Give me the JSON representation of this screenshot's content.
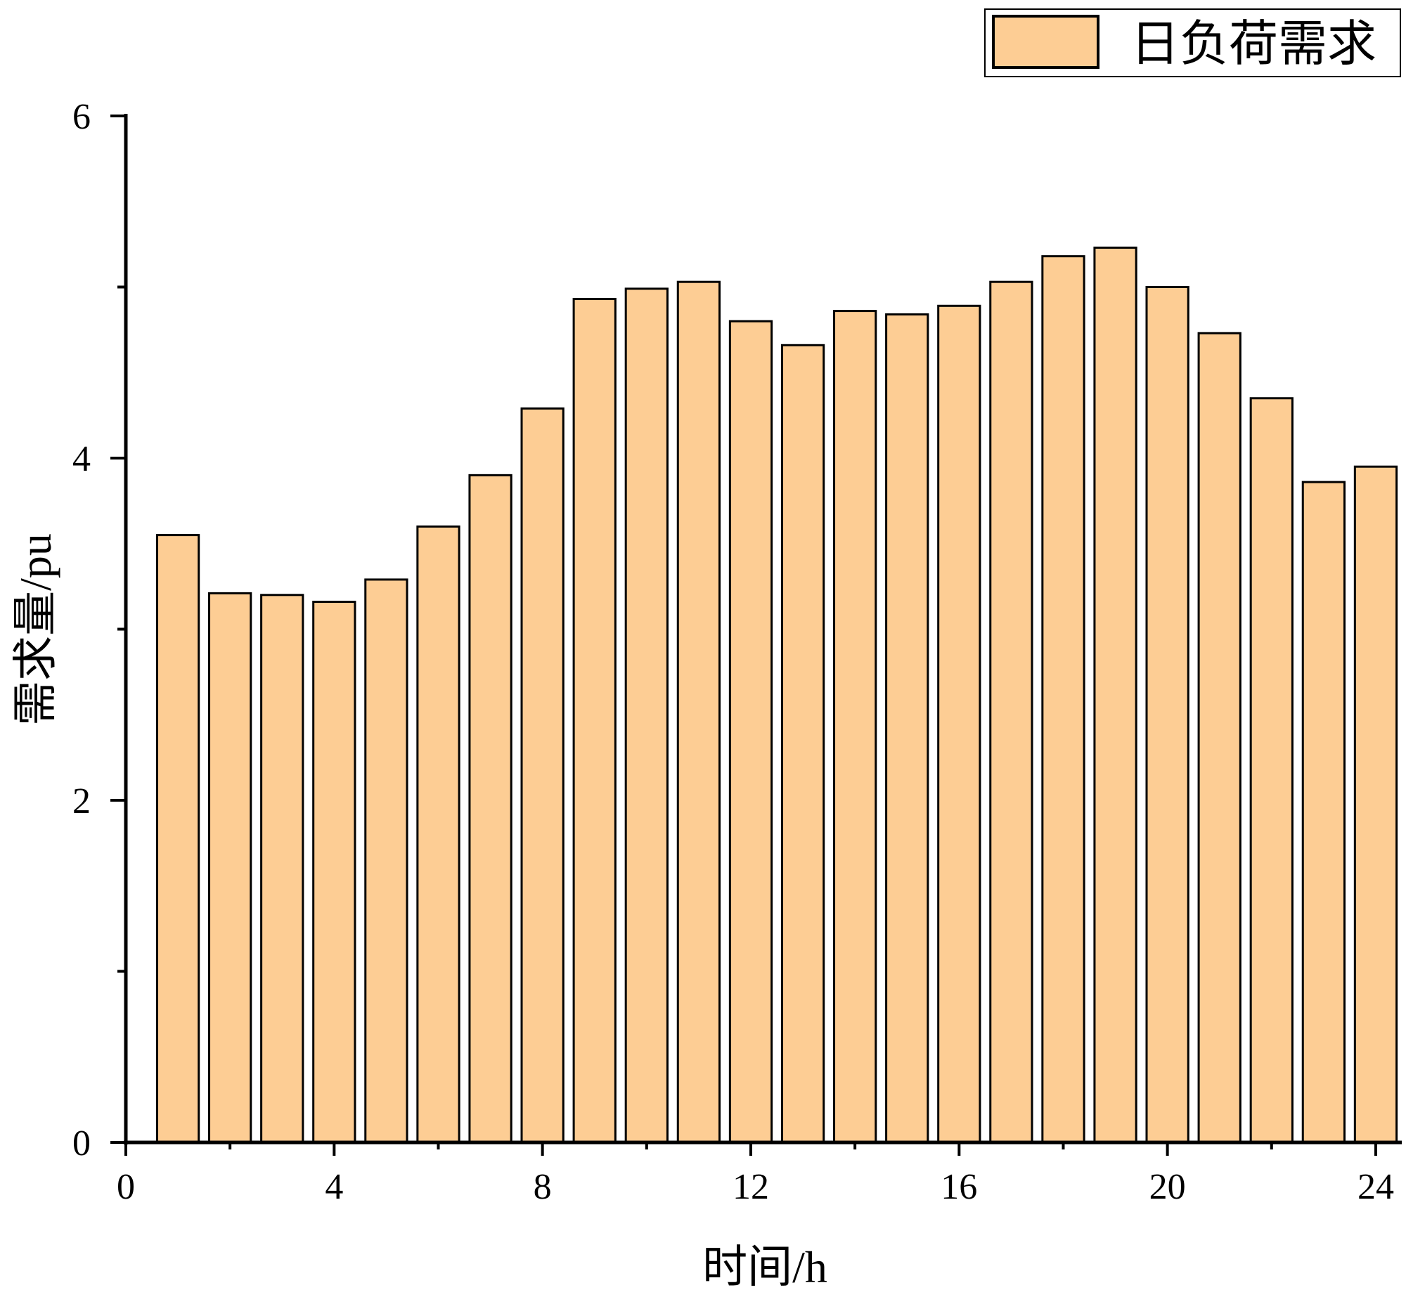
{
  "chart_data": {
    "type": "bar",
    "x_label": "时间/h",
    "y_label": "需求量/pu",
    "x": [
      1,
      2,
      3,
      4,
      5,
      6,
      7,
      8,
      9,
      10,
      11,
      12,
      13,
      14,
      15,
      16,
      17,
      18,
      19,
      20,
      21,
      22,
      23,
      24
    ],
    "series": [
      {
        "name": "日负荷需求",
        "color": "#fdcd94",
        "values": [
          3.55,
          3.21,
          3.2,
          3.16,
          3.29,
          3.6,
          3.9,
          4.29,
          4.93,
          4.99,
          5.03,
          4.8,
          4.66,
          4.86,
          4.84,
          4.89,
          5.03,
          5.18,
          5.23,
          5.0,
          4.73,
          4.35,
          3.86,
          3.95
        ]
      }
    ],
    "xlim": [
      0,
      24.5
    ],
    "xticks": [
      0,
      4,
      8,
      12,
      16,
      20,
      24
    ],
    "x_minor_ticks": [
      2,
      6,
      10,
      14,
      18,
      22
    ],
    "ylim": [
      0,
      6
    ],
    "yticks": [
      0,
      2,
      4,
      6
    ],
    "y_minor_ticks": [
      1,
      3,
      5
    ],
    "bar_width": 0.8,
    "legend": "top-right",
    "grid": false
  }
}
